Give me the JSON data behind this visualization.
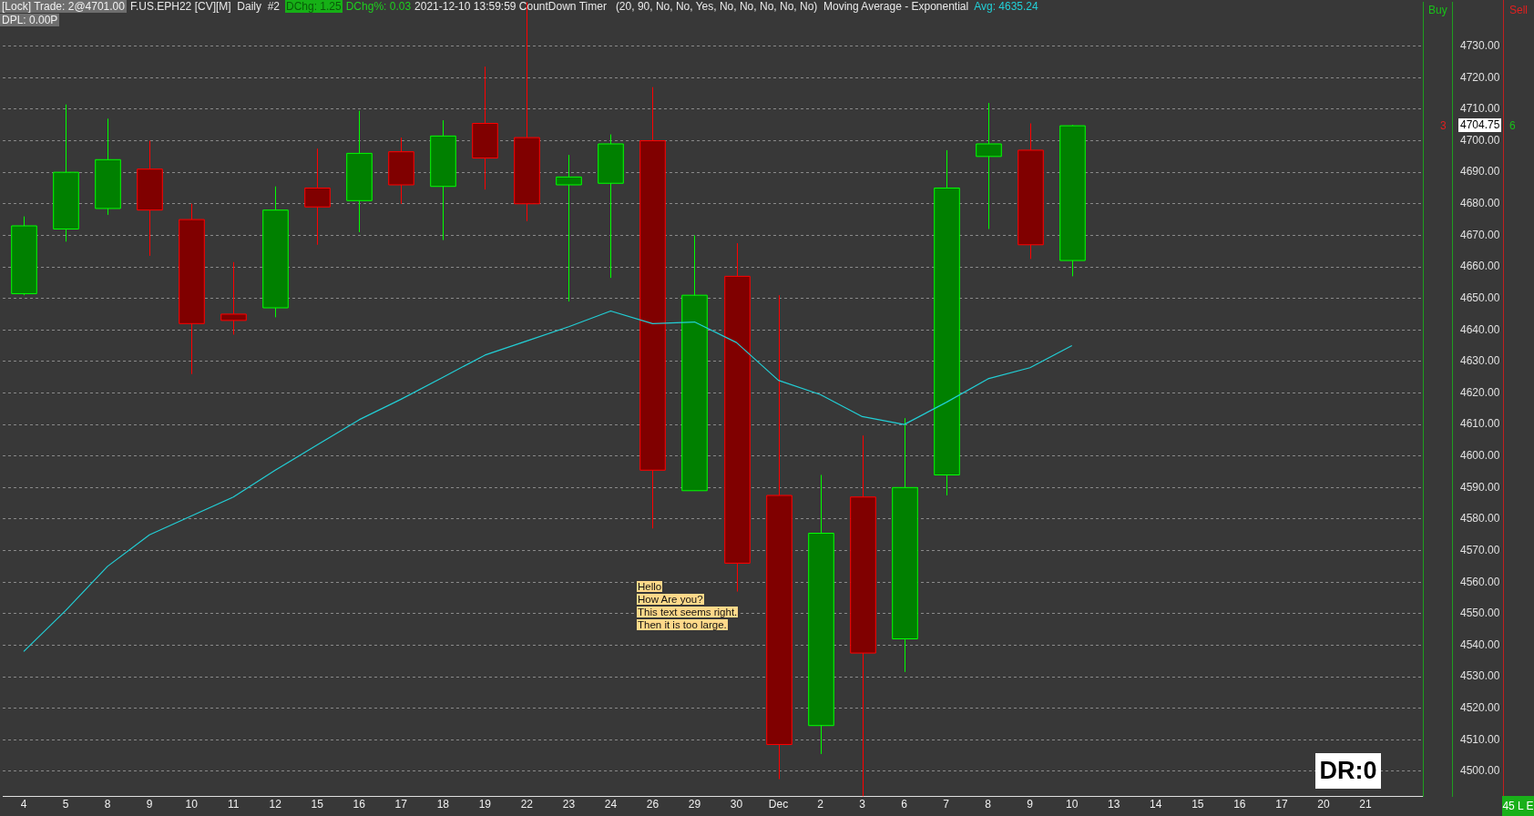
{
  "chart_data": {
    "type": "candlestick",
    "title": "[Lock] Trade: 2@4701.00",
    "categories": [
      "4",
      "5",
      "8",
      "9",
      "10",
      "11",
      "12",
      "15",
      "16",
      "17",
      "18",
      "19",
      "22",
      "23",
      "24",
      "26",
      "29",
      "30",
      "Dec",
      "2",
      "3",
      "6",
      "7",
      "8",
      "9",
      "10",
      "13",
      "14",
      "15",
      "16",
      "17",
      "20",
      "21"
    ],
    "ohlc": [
      [
        4651.5,
        4676,
        4651,
        4673
      ],
      [
        4672,
        4711.5,
        4668,
        4690
      ],
      [
        4678.5,
        4707,
        4676.5,
        4694
      ],
      [
        4691,
        4700,
        4663.5,
        4678
      ],
      [
        4675,
        4680,
        4626,
        4642
      ],
      [
        4645,
        4661.5,
        4638.5,
        4643
      ],
      [
        4647,
        4685.5,
        4644,
        4678
      ],
      [
        4685,
        4697.5,
        4667,
        4679
      ],
      [
        4681,
        4709.5,
        4671,
        4696
      ],
      [
        4696.5,
        4701,
        4680,
        4686
      ],
      [
        4685.5,
        4706.5,
        4668.5,
        4701.5
      ],
      [
        4705.5,
        4723.5,
        4684.5,
        4694.5
      ],
      [
        4701,
        4744,
        4674.5,
        4680
      ],
      [
        4686,
        4695.5,
        4649,
        4688.5
      ],
      [
        4686.5,
        4702,
        4656.5,
        4699
      ],
      [
        4700,
        4717,
        4577,
        4595.5
      ],
      [
        4589,
        4670,
        4589,
        4651
      ],
      [
        4657,
        4667.5,
        4557,
        4566
      ],
      [
        4587.5,
        4651,
        4497.5,
        4508.5
      ],
      [
        4514.5,
        4594,
        4505.5,
        4575.5
      ],
      [
        4587,
        4606.5,
        4492,
        4537.5
      ],
      [
        4542,
        4612,
        4531.5,
        4590
      ],
      [
        4594,
        4697,
        4587.5,
        4685
      ],
      [
        4695,
        4712,
        4672,
        4699
      ],
      [
        4697,
        4705.5,
        4662.5,
        4667
      ],
      [
        4662,
        4705,
        4657,
        4704.75
      ],
      null,
      null,
      null,
      null,
      null,
      null,
      null
    ],
    "colors": [
      "#008000",
      "#008000",
      "#008000",
      "#800000",
      "#800000",
      "#800000",
      "#008000",
      "#800000",
      "#008000",
      "#800000",
      "#008000",
      "#800000",
      "#800000",
      "#008000",
      "#008000",
      "#800000",
      "#008000",
      "#800000",
      "#800000",
      "#008000",
      "#800000",
      "#008000",
      "#008000",
      "#008000",
      "#800000",
      "#008000",
      null,
      null,
      null,
      null,
      null,
      null,
      null
    ],
    "series": [
      {
        "type": "line",
        "color": "#22cfd6",
        "values": [
          4538,
          4551,
          4565,
          4575,
          4581,
          4587,
          4595.5,
          4603.5,
          4611.5,
          4618,
          4625,
          4632,
          4636.5,
          4641,
          4646,
          4642,
          4642.5,
          4636,
          4624,
          4619.5,
          4612.5,
          4610,
          4617,
          4624.5,
          4628,
          4635,
          null,
          null,
          null,
          null,
          null,
          null,
          null
        ]
      }
    ],
    "ylim": [
      4492,
      4744
    ],
    "yticks": [
      {
        "value": 4500,
        "label": "4500.00"
      },
      {
        "value": 4510,
        "label": "4510.00"
      },
      {
        "value": 4520,
        "label": "4520.00"
      },
      {
        "value": 4530,
        "label": "4530.00"
      },
      {
        "value": 4540,
        "label": "4540.00"
      },
      {
        "value": 4550,
        "label": "4550.00"
      },
      {
        "value": 4560,
        "label": "4560.00"
      },
      {
        "value": 4570,
        "label": "4570.00"
      },
      {
        "value": 4580,
        "label": "4580.00"
      },
      {
        "value": 4590,
        "label": "4590.00"
      },
      {
        "value": 4600,
        "label": "4600.00"
      },
      {
        "value": 4610,
        "label": "4610.00"
      },
      {
        "value": 4620,
        "label": "4620.00"
      },
      {
        "value": 4630,
        "label": "4630.00"
      },
      {
        "value": 4640,
        "label": "4640.00"
      },
      {
        "value": 4650,
        "label": "4650.00"
      },
      {
        "value": 4660,
        "label": "4660.00"
      },
      {
        "value": 4670,
        "label": "4670.00"
      },
      {
        "value": 4680,
        "label": "4680.00"
      },
      {
        "value": 4690,
        "label": "4690.00"
      },
      {
        "value": 4700,
        "label": "4700.00"
      },
      {
        "value": 4710,
        "label": "4710.00"
      },
      {
        "value": 4720,
        "label": "4720.00"
      },
      {
        "value": 4730,
        "label": "4730.00"
      }
    ],
    "grid": "y",
    "marker": "none",
    "annotations": [
      "F.US.EPH22 [CV][M]  Daily  #2",
      "DChg: 1.25",
      "DChg%: 0.03",
      "2021-12-10 13:59:59 CountDown Timer   (20, 90, No, No, Yes, No, No, No, No, No)  Moving Average - Exponential",
      "Avg: 4635.24",
      "DPL: 0.00P",
      "Hello\nHow Are you?\nThis text seems right.\nThen it is too large.",
      "DR:0",
      "Buy",
      "Sell",
      "3",
      "6",
      "45 L E",
      "4704.75"
    ]
  }
}
